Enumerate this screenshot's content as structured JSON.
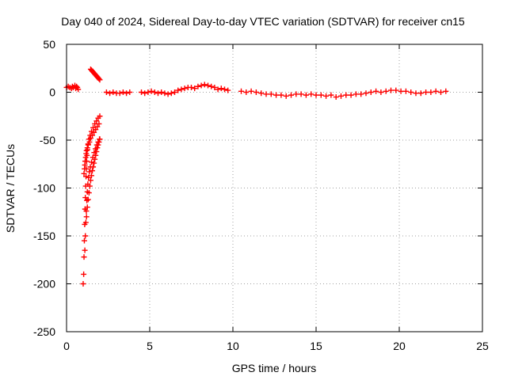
{
  "chart_data": {
    "type": "scatter",
    "title": "Day 040 of 2024, Sidereal Day-to-day VTEC variation (SDTVAR) for receiver cn15",
    "xlabel": "GPS time / hours",
    "ylabel": "SDTVAR / TECUs",
    "xlim": [
      0,
      25
    ],
    "ylim": [
      -250,
      50
    ],
    "xticks": [
      "0",
      "5",
      "10",
      "15",
      "20",
      "25"
    ],
    "yticks": [
      "50",
      "0",
      "-50",
      "-100",
      "-150",
      "-200",
      "-250"
    ],
    "grid": true,
    "marker": "+",
    "color": "#ff0000",
    "series": [
      {
        "name": "SDTVAR",
        "segments": [
          {
            "x": [
              0.0,
              0.1,
              0.2,
              0.3,
              0.35,
              0.4,
              0.5,
              0.55,
              0.6,
              0.65,
              0.7
            ],
            "y": [
              5,
              6,
              5,
              4,
              6,
              5,
              7,
              4,
              6,
              5,
              3
            ]
          },
          {
            "x": [
              1.0,
              1.03,
              1.05,
              1.07,
              1.09,
              1.11,
              1.13,
              1.15,
              1.17,
              1.19,
              1.21,
              1.23,
              1.26,
              1.3,
              1.35,
              1.42,
              1.5,
              1.6,
              1.7,
              1.8,
              1.9,
              2.0
            ],
            "y": [
              -200,
              -190,
              -172,
              -155,
              -138,
              -122,
              -110,
              -98,
              -88,
              -80,
              -72,
              -66,
              -60,
              -54,
              -49,
              -45,
              -41,
              -37,
              -33,
              -30,
              -27,
              -25
            ]
          },
          {
            "x": [
              1.05,
              1.08,
              1.1,
              1.12,
              1.15,
              1.18,
              1.2,
              1.25,
              1.3,
              1.38,
              1.45,
              1.55,
              1.65,
              1.75,
              1.85,
              1.95
            ],
            "y": [
              -85,
              -80,
              -76,
              -72,
              -68,
              -64,
              -61,
              -58,
              -55,
              -52,
              -48,
              -45,
              -42,
              -39,
              -36,
              -33
            ]
          },
          {
            "x": [
              1.1,
              1.13,
              1.16,
              1.19,
              1.22,
              1.25,
              1.28,
              1.32,
              1.37,
              1.43,
              1.5,
              1.58,
              1.66,
              1.74,
              1.82,
              1.9,
              1.98
            ],
            "y": [
              -165,
              -150,
              -136,
              -124,
              -113,
              -104,
              -96,
              -89,
              -83,
              -78,
              -73,
              -68,
              -63,
              -59,
              -55,
              -52,
              -49
            ]
          },
          {
            "x": [
              1.2,
              1.25,
              1.3,
              1.35,
              1.4,
              1.45,
              1.5,
              1.55,
              1.6,
              1.65,
              1.7,
              1.75,
              1.8,
              1.85,
              1.9,
              1.95,
              2.0
            ],
            "y": [
              -130,
              -120,
              -112,
              -105,
              -98,
              -92,
              -87,
              -82,
              -78,
              -74,
              -70,
              -66,
              -62,
              -58,
              -55,
              -52,
              -49
            ]
          },
          {
            "x": [
              1.45,
              1.5,
              1.55,
              1.6,
              1.65,
              1.7,
              1.75,
              1.8,
              1.85,
              1.9,
              1.95,
              2.0
            ],
            "y": [
              24,
              23,
              22,
              21,
              20,
              19,
              18,
              17,
              16,
              15,
              14,
              13
            ]
          },
          {
            "x": [
              2.4,
              2.6,
              2.8,
              3.0,
              3.2,
              3.4,
              3.6,
              3.8,
              4.5,
              4.7,
              4.9,
              5.1,
              5.3,
              5.5,
              5.7
            ],
            "y": [
              0,
              -1,
              0,
              -1,
              -1,
              0,
              -1,
              0,
              0,
              -1,
              0,
              1,
              0,
              -1,
              0
            ]
          },
          {
            "x": [
              5.9,
              6.1,
              6.3,
              6.5,
              6.7,
              6.9,
              7.1,
              7.3,
              7.5,
              7.7,
              7.9,
              8.1,
              8.3,
              8.5,
              8.7,
              8.9,
              9.1,
              9.3,
              9.5,
              9.7
            ],
            "y": [
              -1,
              -2,
              -1,
              0,
              2,
              3,
              4,
              5,
              5,
              4,
              6,
              7,
              8,
              7,
              6,
              5,
              3,
              4,
              3,
              2
            ]
          },
          {
            "x": [
              10.5,
              10.8,
              11.1,
              11.4,
              11.7,
              12.0,
              12.3,
              12.6,
              12.9,
              13.2,
              13.5,
              13.8,
              14.1,
              14.4,
              14.7,
              15.0,
              15.3,
              15.6
            ],
            "y": [
              1,
              0,
              1,
              0,
              -1,
              -2,
              -2,
              -3,
              -3,
              -4,
              -3,
              -2,
              -2,
              -3,
              -2,
              -3,
              -3,
              -4
            ]
          },
          {
            "x": [
              15.9,
              16.2,
              16.5,
              16.8,
              17.1,
              17.4,
              17.7,
              18.0,
              18.3,
              18.6,
              18.9,
              19.2,
              19.5,
              19.8,
              20.1,
              20.4,
              20.7,
              21.0,
              21.3,
              21.6,
              21.9,
              22.2,
              22.5,
              22.8
            ],
            "y": [
              -3,
              -5,
              -4,
              -3,
              -3,
              -2,
              -2,
              -1,
              0,
              1,
              0,
              1,
              2,
              2,
              1,
              1,
              0,
              -1,
              -1,
              0,
              0,
              1,
              0,
              1
            ]
          }
        ]
      }
    ]
  }
}
